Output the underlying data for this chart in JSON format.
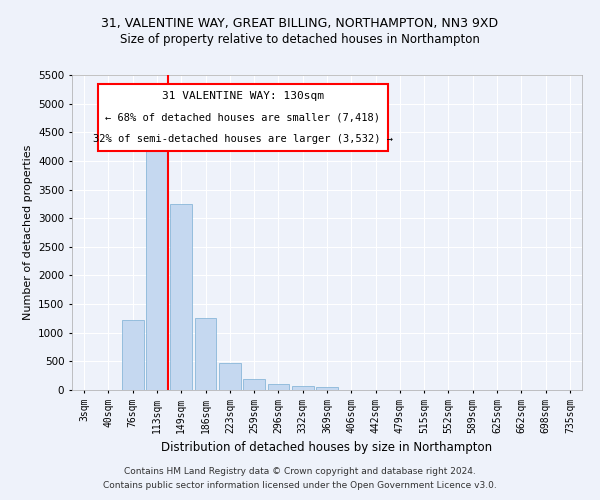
{
  "title1": "31, VALENTINE WAY, GREAT BILLING, NORTHAMPTON, NN3 9XD",
  "title2": "Size of property relative to detached houses in Northampton",
  "xlabel": "Distribution of detached houses by size in Northampton",
  "ylabel": "Number of detached properties",
  "bar_color": "#c5d8f0",
  "bar_edge_color": "#7aaed4",
  "vline_color": "red",
  "categories": [
    "3sqm",
    "40sqm",
    "76sqm",
    "113sqm",
    "149sqm",
    "186sqm",
    "223sqm",
    "259sqm",
    "296sqm",
    "332sqm",
    "369sqm",
    "406sqm",
    "442sqm",
    "479sqm",
    "515sqm",
    "552sqm",
    "589sqm",
    "625sqm",
    "662sqm",
    "698sqm",
    "735sqm"
  ],
  "values": [
    0,
    0,
    1220,
    4300,
    3250,
    1250,
    470,
    200,
    100,
    75,
    55,
    0,
    0,
    0,
    0,
    0,
    0,
    0,
    0,
    0,
    0
  ],
  "ylim": [
    0,
    5500
  ],
  "yticks": [
    0,
    500,
    1000,
    1500,
    2000,
    2500,
    3000,
    3500,
    4000,
    4500,
    5000,
    5500
  ],
  "annotation_text_line1": "31 VALENTINE WAY: 130sqm",
  "annotation_text_line2": "← 68% of detached houses are smaller (7,418)",
  "annotation_text_line3": "32% of semi-detached houses are larger (3,532) →",
  "footer1": "Contains HM Land Registry data © Crown copyright and database right 2024.",
  "footer2": "Contains public sector information licensed under the Open Government Licence v3.0.",
  "background_color": "#eef2fa",
  "grid_color": "#ffffff"
}
